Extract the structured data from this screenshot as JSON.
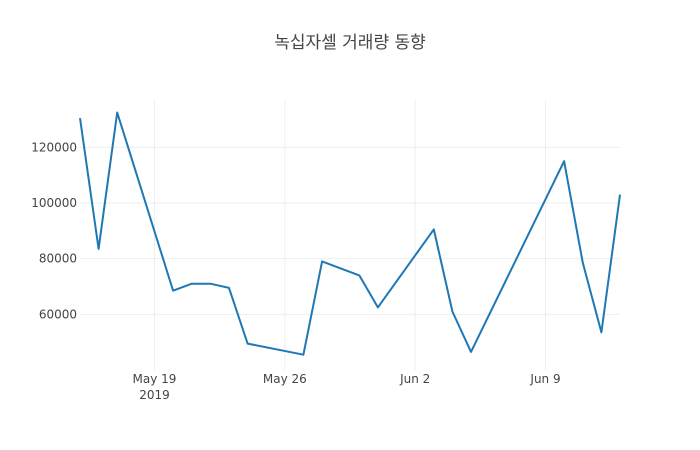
{
  "chart_data": {
    "type": "line",
    "title": "녹십자셀 거래량 동향",
    "xlabel": "",
    "ylabel": "",
    "x_tick_labels": [
      "May 19",
      "May 26",
      "Jun 2",
      "Jun 9"
    ],
    "x_tick_dates": [
      "2019-05-19",
      "2019-05-26",
      "2019-06-02",
      "2019-06-09"
    ],
    "x_tick_year": "2019",
    "xlim": [
      "2019-05-15",
      "2019-06-13"
    ],
    "ylim": [
      40000,
      137000
    ],
    "y_ticks": [
      60000,
      80000,
      100000,
      120000
    ],
    "y_tick_labels": [
      "60000",
      "80000",
      "100000",
      "120000"
    ],
    "grid": true,
    "line_color": "#1f77b4",
    "series": [
      {
        "x": [
          "2019-05-15",
          "2019-05-16",
          "2019-05-17",
          "2019-05-20",
          "2019-05-21",
          "2019-05-22",
          "2019-05-23",
          "2019-05-24",
          "2019-05-27",
          "2019-05-28",
          "2019-05-30",
          "2019-05-31",
          "2019-06-03",
          "2019-06-04",
          "2019-06-05",
          "2019-06-10",
          "2019-06-11",
          "2019-06-12",
          "2019-06-13"
        ],
        "y": [
          130500,
          83500,
          132500,
          68500,
          71000,
          71000,
          69500,
          49500,
          45500,
          79000,
          74000,
          62500,
          90500,
          61000,
          46500,
          115000,
          78500,
          53500,
          103000
        ]
      }
    ]
  }
}
